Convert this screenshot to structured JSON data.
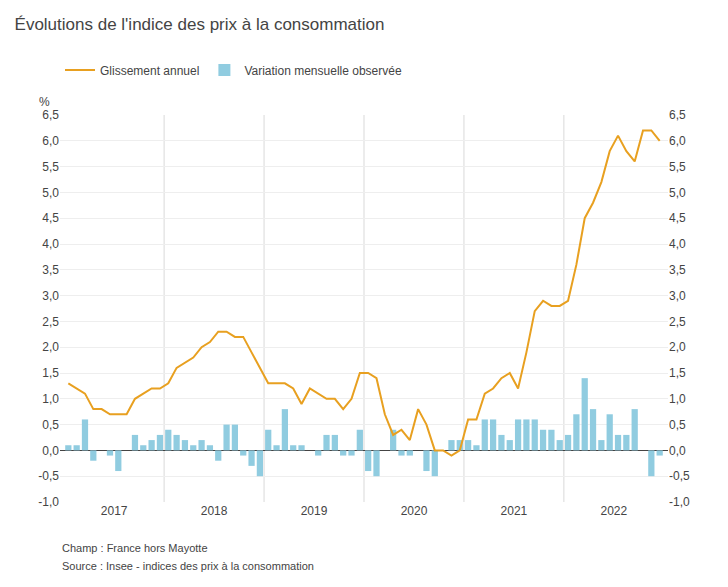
{
  "chart_data": {
    "type": "bar",
    "title": "Évolutions de l'indice des prix à la consommation",
    "ylabel": "%",
    "annotations": [
      "Champ : France hors Mayotte",
      "Source : Insee - indices des prix à la consommation"
    ],
    "categories": [
      "2017",
      "2017",
      "2017",
      "2017",
      "2017",
      "2017",
      "2017",
      "2017",
      "2017",
      "2017",
      "2017",
      "2017",
      "2018",
      "2018",
      "2018",
      "2018",
      "2018",
      "2018",
      "2018",
      "2018",
      "2018",
      "2018",
      "2018",
      "2018",
      "2019",
      "2019",
      "2019",
      "2019",
      "2019",
      "2019",
      "2019",
      "2019",
      "2019",
      "2019",
      "2019",
      "2019",
      "2020",
      "2020",
      "2020",
      "2020",
      "2020",
      "2020",
      "2020",
      "2020",
      "2020",
      "2020",
      "2020",
      "2020",
      "2021",
      "2021",
      "2021",
      "2021",
      "2021",
      "2021",
      "2021",
      "2021",
      "2021",
      "2021",
      "2021",
      "2021",
      "2022",
      "2022",
      "2022",
      "2022",
      "2022",
      "2022",
      "2022",
      "2022",
      "2022",
      "2022",
      "2022",
      "2022"
    ],
    "series": [
      {
        "name": "Glissement annuel",
        "type": "line",
        "color": "#e8a020",
        "values": [
          1.3,
          1.2,
          1.1,
          0.8,
          0.8,
          0.7,
          0.7,
          0.7,
          1.0,
          1.1,
          1.2,
          1.2,
          1.3,
          1.6,
          1.7,
          1.8,
          2.0,
          2.1,
          2.3,
          2.3,
          2.2,
          2.2,
          1.9,
          1.6,
          1.3,
          1.3,
          1.3,
          1.2,
          0.9,
          1.2,
          1.1,
          1.0,
          1.0,
          0.8,
          1.0,
          1.5,
          1.5,
          1.4,
          0.7,
          0.3,
          0.4,
          0.2,
          0.8,
          0.5,
          0.0,
          0.0,
          -0.1,
          0.0,
          0.6,
          0.6,
          1.1,
          1.2,
          1.4,
          1.5,
          1.2,
          1.9,
          2.7,
          2.9,
          2.8,
          2.8,
          2.9,
          3.6,
          4.5,
          4.8,
          5.2,
          5.8,
          6.1,
          5.8,
          5.6,
          6.2,
          6.2,
          6.0
        ]
      },
      {
        "name": "Variation mensuelle observée",
        "type": "bar",
        "color": "#90cce0",
        "values": [
          0.1,
          0.1,
          0.6,
          -0.2,
          0.0,
          -0.1,
          -0.4,
          0.0,
          0.3,
          0.1,
          0.2,
          0.3,
          0.4,
          0.3,
          0.2,
          0.1,
          0.2,
          0.1,
          -0.2,
          0.5,
          0.5,
          -0.1,
          -0.3,
          -0.5,
          0.4,
          0.1,
          0.8,
          0.1,
          0.1,
          0.0,
          -0.1,
          0.3,
          0.3,
          -0.1,
          -0.1,
          0.4,
          -0.4,
          -0.5,
          0.0,
          0.4,
          -0.1,
          -0.1,
          0.0,
          -0.4,
          -0.5,
          0.0,
          0.2,
          0.2,
          0.2,
          0.1,
          0.6,
          0.6,
          0.3,
          0.2,
          0.6,
          0.6,
          0.6,
          0.4,
          0.4,
          0.2,
          0.3,
          0.7,
          1.4,
          0.8,
          0.2,
          0.7,
          0.3,
          0.3,
          0.8,
          0.0,
          -0.5,
          -0.1
        ]
      }
    ],
    "ylim": [
      -1.0,
      6.5
    ],
    "yticks": [
      {
        "value": -1.0,
        "label": "-1,0"
      },
      {
        "value": -0.5,
        "label": "-0,5"
      },
      {
        "value": 0.0,
        "label": "0,0"
      },
      {
        "value": 0.5,
        "label": "0,5"
      },
      {
        "value": 1.0,
        "label": "1,0"
      },
      {
        "value": 1.5,
        "label": "1,5"
      },
      {
        "value": 2.0,
        "label": "2,0"
      },
      {
        "value": 2.5,
        "label": "2,5"
      },
      {
        "value": 3.0,
        "label": "3,0"
      },
      {
        "value": 3.5,
        "label": "3,5"
      },
      {
        "value": 4.0,
        "label": "4,0"
      },
      {
        "value": 4.5,
        "label": "4,5"
      },
      {
        "value": 5.0,
        "label": "5,0"
      },
      {
        "value": 5.5,
        "label": "5,5"
      },
      {
        "value": 6.0,
        "label": "6,0"
      },
      {
        "value": 6.5,
        "label": "6,5"
      }
    ],
    "y2lim": [
      -1.0,
      6.5
    ],
    "y2ticks": [
      {
        "value": -1.0,
        "label": "-1,0"
      },
      {
        "value": -0.5,
        "label": "-0,5"
      },
      {
        "value": 0.0,
        "label": "0,0"
      },
      {
        "value": 0.5,
        "label": "0,5"
      },
      {
        "value": 1.0,
        "label": "1,0"
      },
      {
        "value": 1.5,
        "label": "1,5"
      },
      {
        "value": 2.0,
        "label": "2,0"
      },
      {
        "value": 2.5,
        "label": "2,5"
      },
      {
        "value": 3.0,
        "label": "3,0"
      },
      {
        "value": 3.5,
        "label": "3,5"
      },
      {
        "value": 4.0,
        "label": "4,0"
      },
      {
        "value": 4.5,
        "label": "4,5"
      },
      {
        "value": 5.0,
        "label": "5,0"
      },
      {
        "value": 5.5,
        "label": "5,5"
      },
      {
        "value": 6.0,
        "label": "6,0"
      },
      {
        "value": 6.5,
        "label": "6,5"
      }
    ],
    "grid": true,
    "legend": "upper left"
  }
}
